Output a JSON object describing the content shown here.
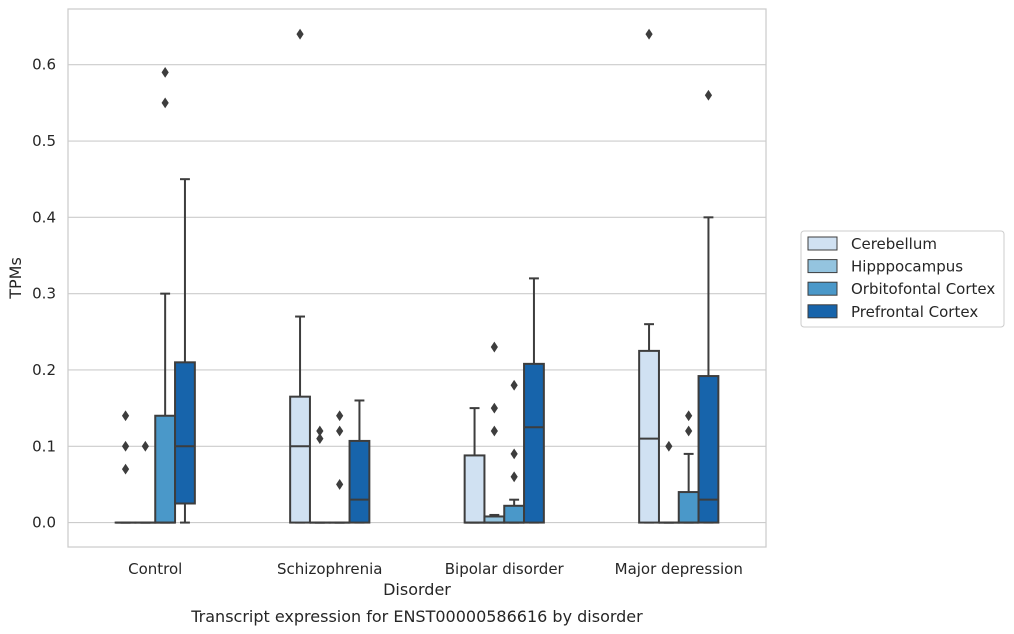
{
  "chart_data": {
    "type": "box",
    "title": "",
    "caption": "Transcript expression for ENST00000586616 by disorder",
    "xlabel": "Disorder",
    "ylabel": "TPMs",
    "categories": [
      "Control",
      "Schizophrenia",
      "Bipolar disorder",
      "Major depression"
    ],
    "ylim": [
      -0.032,
      0.673
    ],
    "yticks": [
      0.0,
      0.1,
      0.2,
      0.3,
      0.4,
      0.5,
      0.6
    ],
    "ytick_labels": [
      "0.0",
      "0.1",
      "0.2",
      "0.3",
      "0.4",
      "0.5",
      "0.6"
    ],
    "grid": "horizontal",
    "legend_position": "right",
    "series": [
      {
        "name": "Cerebellum",
        "color": "#d0e1f2",
        "boxes": [
          {
            "category": "Control",
            "q1": 0.0,
            "median": 0.0,
            "q3": 0.0,
            "whisker_low": 0.0,
            "whisker_high": 0.0,
            "outliers": [
              0.07,
              0.1,
              0.14
            ]
          },
          {
            "category": "Schizophrenia",
            "q1": 0.0,
            "median": 0.1,
            "q3": 0.165,
            "whisker_low": 0.0,
            "whisker_high": 0.27,
            "outliers": [
              0.64
            ]
          },
          {
            "category": "Bipolar disorder",
            "q1": 0.0,
            "median": 0.0,
            "q3": 0.088,
            "whisker_low": 0.0,
            "whisker_high": 0.15,
            "outliers": []
          },
          {
            "category": "Major depression",
            "q1": 0.0,
            "median": 0.11,
            "q3": 0.225,
            "whisker_low": 0.0,
            "whisker_high": 0.26,
            "outliers": [
              0.64
            ]
          }
        ]
      },
      {
        "name": "Hipppocampus",
        "color": "#94c4df",
        "boxes": [
          {
            "category": "Control",
            "q1": 0.0,
            "median": 0.0,
            "q3": 0.0,
            "whisker_low": 0.0,
            "whisker_high": 0.0,
            "outliers": [
              0.1
            ]
          },
          {
            "category": "Schizophrenia",
            "q1": 0.0,
            "median": 0.0,
            "q3": 0.0,
            "whisker_low": 0.0,
            "whisker_high": 0.0,
            "outliers": [
              0.11,
              0.12
            ]
          },
          {
            "category": "Bipolar disorder",
            "q1": 0.0,
            "median": 0.0,
            "q3": 0.008,
            "whisker_low": 0.0,
            "whisker_high": 0.01,
            "outliers": [
              0.12,
              0.15,
              0.23
            ]
          },
          {
            "category": "Major depression",
            "q1": 0.0,
            "median": 0.0,
            "q3": 0.0,
            "whisker_low": 0.0,
            "whisker_high": 0.0,
            "outliers": [
              0.1
            ]
          }
        ]
      },
      {
        "name": "Orbitofontal Cortex",
        "color": "#4a98c9",
        "boxes": [
          {
            "category": "Control",
            "q1": 0.0,
            "median": 0.0,
            "q3": 0.14,
            "whisker_low": 0.0,
            "whisker_high": 0.3,
            "outliers": [
              0.55,
              0.59
            ]
          },
          {
            "category": "Schizophrenia",
            "q1": 0.0,
            "median": 0.0,
            "q3": 0.0,
            "whisker_low": 0.0,
            "whisker_high": 0.0,
            "outliers": [
              0.05,
              0.12,
              0.14
            ]
          },
          {
            "category": "Bipolar disorder",
            "q1": 0.0,
            "median": 0.0,
            "q3": 0.022,
            "whisker_low": 0.0,
            "whisker_high": 0.03,
            "outliers": [
              0.06,
              0.09,
              0.18
            ]
          },
          {
            "category": "Major depression",
            "q1": 0.0,
            "median": 0.0,
            "q3": 0.04,
            "whisker_low": 0.0,
            "whisker_high": 0.09,
            "outliers": [
              0.12,
              0.14
            ]
          }
        ]
      },
      {
        "name": "Prefrontal Cortex",
        "color": "#1764ab",
        "boxes": [
          {
            "category": "Control",
            "q1": 0.025,
            "median": 0.1,
            "q3": 0.21,
            "whisker_low": 0.0,
            "whisker_high": 0.45,
            "outliers": []
          },
          {
            "category": "Schizophrenia",
            "q1": 0.0,
            "median": 0.03,
            "q3": 0.107,
            "whisker_low": 0.0,
            "whisker_high": 0.16,
            "outliers": []
          },
          {
            "category": "Bipolar disorder",
            "q1": 0.0,
            "median": 0.125,
            "q3": 0.208,
            "whisker_low": 0.0,
            "whisker_high": 0.32,
            "outliers": []
          },
          {
            "category": "Major depression",
            "q1": 0.0,
            "median": 0.03,
            "q3": 0.192,
            "whisker_low": 0.0,
            "whisker_high": 0.4,
            "outliers": [
              0.56
            ]
          }
        ]
      }
    ]
  }
}
